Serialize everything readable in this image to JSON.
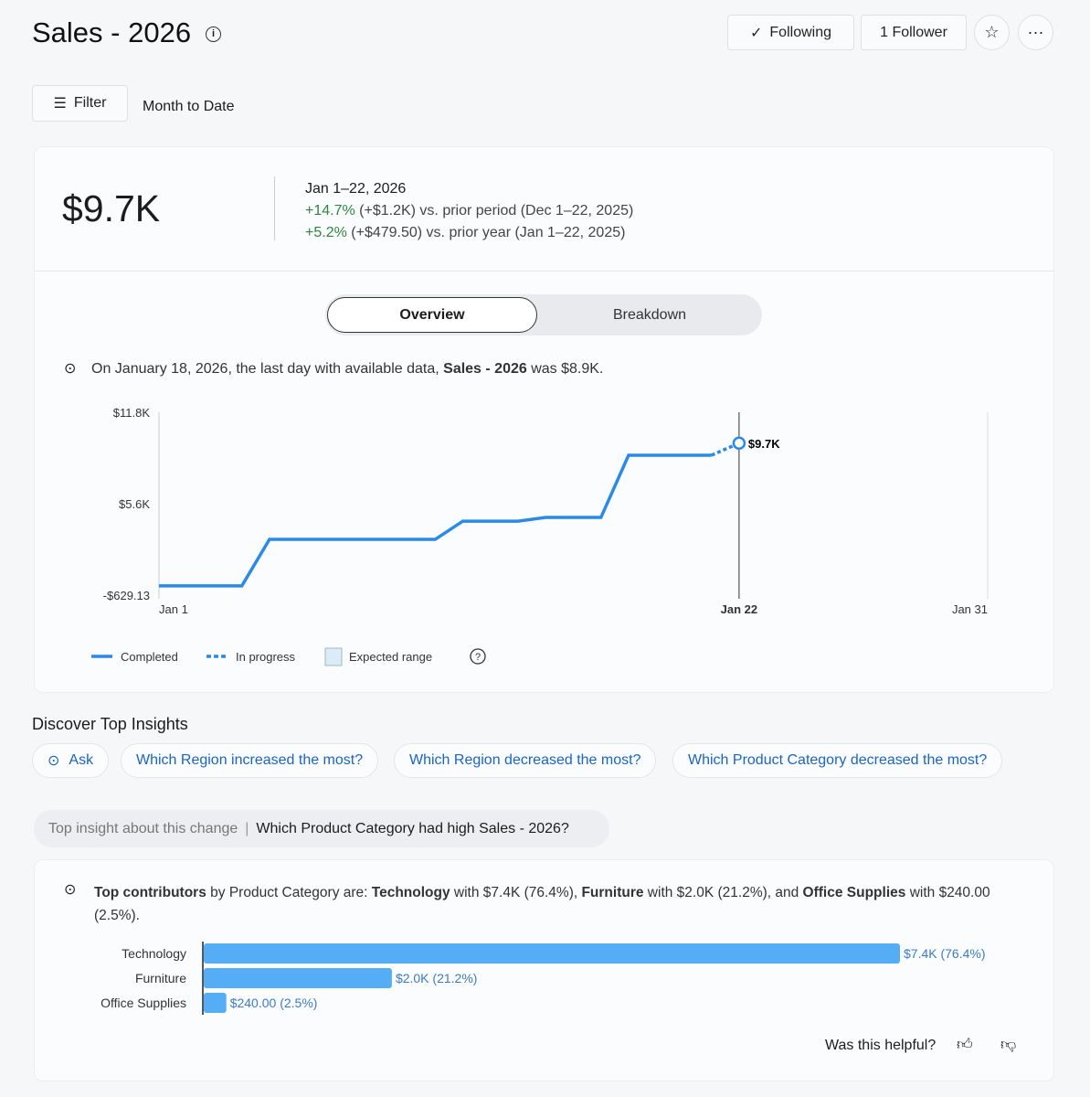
{
  "header": {
    "title": "Sales - 2026",
    "following_label": "Following",
    "followers_label": "1 Follower"
  },
  "filter": {
    "label": "Filter",
    "range": "Month to Date"
  },
  "kpi": {
    "value": "$9.7K",
    "period": "Jan 1–22, 2026",
    "change1_pct": "+14.7%",
    "change1_rest": "(+$1.2K) vs. prior period (Dec 1–22, 2025)",
    "change2_pct": "+5.2%",
    "change2_rest": "(+$479.50) vs. prior year (Jan 1–22, 2025)"
  },
  "tabs": {
    "overview": "Overview",
    "breakdown": "Breakdown"
  },
  "summary": {
    "pre": "On January 18, 2026, the last day with available data, ",
    "metric": "Sales - 2026",
    "post": " was $8.9K."
  },
  "chart_data": {
    "type": "line",
    "y_ticks": [
      "$11.8K",
      "$5.6K",
      "-$629.13"
    ],
    "ylim": [
      -629.13,
      11800
    ],
    "x_ticks": [
      "Jan 1",
      "Jan 22",
      "Jan 31"
    ],
    "xlim": [
      1,
      31
    ],
    "completed": {
      "days": [
        1,
        4,
        5,
        11,
        12,
        14,
        15,
        17,
        18,
        21
      ],
      "values": [
        0,
        0,
        3160,
        3160,
        4400,
        4400,
        4650,
        4650,
        8880,
        8880
      ]
    },
    "in_progress": {
      "days": [
        21,
        22
      ],
      "values": [
        8880,
        9700
      ]
    },
    "current_label": "$9.7K",
    "current_day": 22,
    "legend": [
      "Completed",
      "In progress",
      "Expected range"
    ]
  },
  "insights": {
    "heading": "Discover Top Insights",
    "ask": "Ask",
    "chips": [
      "Which Region increased the most?",
      "Which Region decreased the most?",
      "Which Product Category decreased the most?"
    ]
  },
  "top_insight": {
    "label": "Top insight about this change",
    "question": "Which Product Category had high Sales - 2026?",
    "t1": "Top contributors",
    "t2": " by Product Category are: ",
    "t3": "Technology",
    "t4": " with $7.4K (76.4%), ",
    "t5": "Furniture",
    "t6": " with $2.0K (21.2%), and ",
    "t7": "Office Supplies",
    "t8": " with $240.00 (2.5%).",
    "bars": {
      "categories": [
        "Technology",
        "Furniture",
        "Office Supplies"
      ],
      "values": [
        7400,
        2000,
        240
      ],
      "labels": [
        "$7.4K (76.4%)",
        "$2.0K (21.2%)",
        "$240.00 (2.5%)"
      ]
    },
    "helpful": "Was this helpful?"
  },
  "colors": {
    "accent": "#2b8ae6",
    "bar": "#55aef5"
  }
}
